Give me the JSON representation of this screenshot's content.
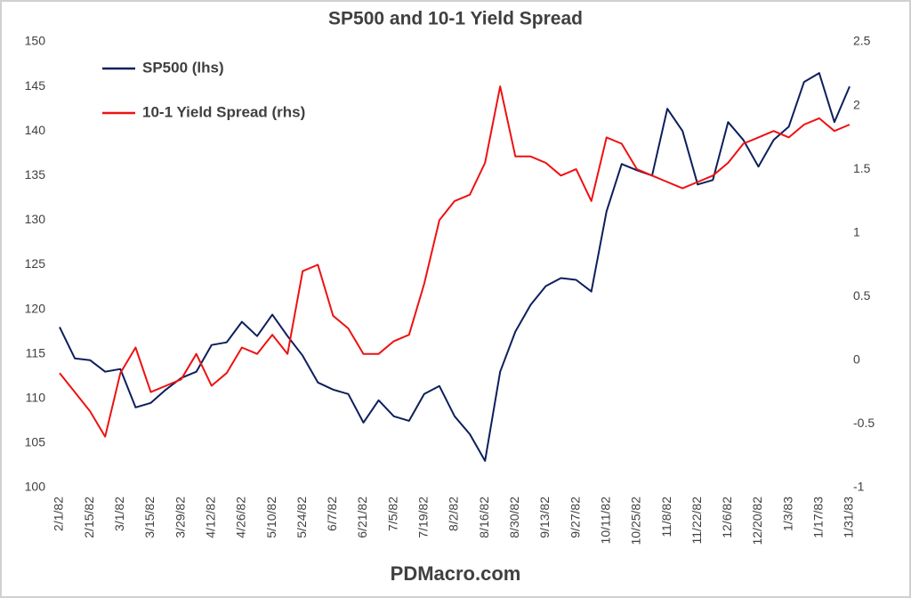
{
  "chart_data": {
    "type": "line",
    "title": "SP500 and 10-1 Yield Spread",
    "footer": "PDMacro.com",
    "legend": "top-left",
    "x": [
      "2/1/82",
      "2/8/82",
      "2/15/82",
      "2/22/82",
      "3/1/82",
      "3/8/82",
      "3/15/82",
      "3/22/82",
      "3/29/82",
      "4/5/82",
      "4/12/82",
      "4/19/82",
      "4/26/82",
      "5/3/82",
      "5/10/82",
      "5/17/82",
      "5/24/82",
      "5/31/82",
      "6/7/82",
      "6/14/82",
      "6/21/82",
      "6/28/82",
      "7/5/82",
      "7/12/82",
      "7/19/82",
      "7/26/82",
      "8/2/82",
      "8/9/82",
      "8/16/82",
      "8/23/82",
      "8/30/82",
      "9/6/82",
      "9/13/82",
      "9/20/82",
      "9/27/82",
      "10/4/82",
      "10/11/82",
      "10/18/82",
      "10/25/82",
      "11/1/82",
      "11/8/82",
      "11/15/82",
      "11/22/82",
      "11/29/82",
      "12/6/82",
      "12/13/82",
      "12/20/82",
      "12/27/82",
      "1/3/83",
      "1/10/83",
      "1/17/83",
      "1/24/83",
      "1/31/83"
    ],
    "xticks": [
      "2/1/82",
      "2/15/82",
      "3/1/82",
      "3/15/82",
      "3/29/82",
      "4/12/82",
      "4/26/82",
      "5/10/82",
      "5/24/82",
      "6/7/82",
      "6/21/82",
      "7/5/82",
      "7/19/82",
      "8/2/82",
      "8/16/82",
      "8/30/82",
      "9/13/82",
      "9/27/82",
      "10/11/82",
      "10/25/82",
      "11/8/82",
      "11/22/82",
      "12/6/82",
      "12/20/82",
      "1/3/83",
      "1/17/83",
      "1/31/83"
    ],
    "ylim": [
      100,
      150
    ],
    "yticks": [
      100,
      105,
      110,
      115,
      120,
      125,
      130,
      135,
      140,
      145,
      150
    ],
    "y2lim": [
      -1,
      2.5
    ],
    "y2ticks": [
      -1,
      -0.5,
      0,
      0.5,
      1,
      1.5,
      2,
      2.5
    ],
    "series": [
      {
        "name": "SP500 (lhs)",
        "color": "#0d1f5c",
        "axis": "y",
        "values": [
          118,
          114.5,
          114.3,
          113,
          113.3,
          109,
          109.5,
          111,
          112.3,
          113,
          116,
          116.3,
          118.6,
          117,
          119.4,
          117,
          114.8,
          111.8,
          111,
          110.5,
          107.3,
          109.8,
          108,
          107.5,
          110.5,
          111.4,
          108,
          106,
          103,
          113,
          117.5,
          120.5,
          122.6,
          123.5,
          123.3,
          122,
          131,
          136.3,
          135.6,
          135,
          142.5,
          140,
          134,
          134.5,
          141,
          139,
          136,
          139,
          140.5,
          145.5,
          146.5,
          141,
          145
        ]
      },
      {
        "name": "10-1 Yield Spread (rhs)",
        "color": "#ee1111",
        "axis": "y2",
        "values": [
          -0.1,
          -0.25,
          -0.4,
          -0.6,
          -0.1,
          0.1,
          -0.25,
          -0.2,
          -0.15,
          0.05,
          -0.2,
          -0.1,
          0.1,
          0.05,
          0.2,
          0.05,
          0.7,
          0.75,
          0.35,
          0.25,
          0.05,
          0.05,
          0.15,
          0.2,
          0.6,
          1.1,
          1.25,
          1.3,
          1.55,
          2.15,
          1.6,
          1.6,
          1.55,
          1.45,
          1.5,
          1.25,
          1.75,
          1.7,
          1.5,
          1.45,
          1.4,
          1.35,
          1.4,
          1.45,
          1.55,
          1.7,
          1.75,
          1.8,
          1.75,
          1.85,
          1.9,
          1.8,
          1.85
        ]
      }
    ]
  }
}
